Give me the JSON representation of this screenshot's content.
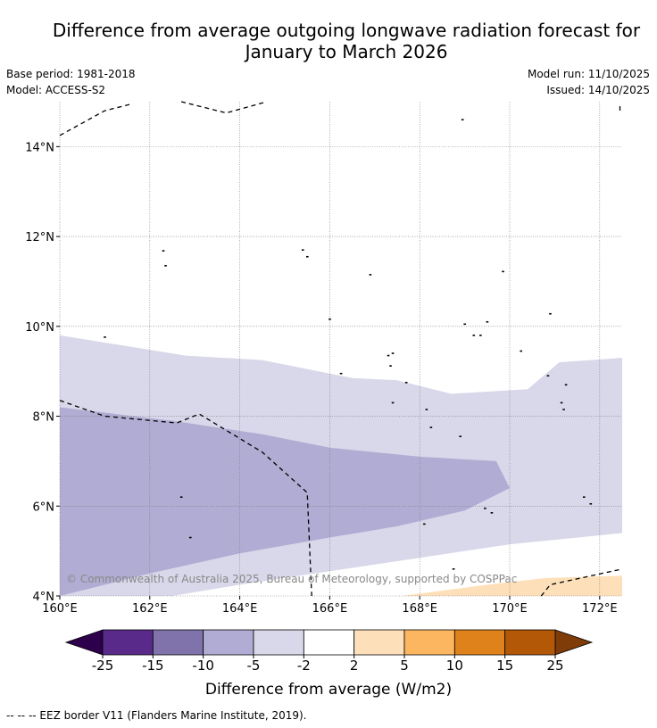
{
  "title_line1": "Difference from average outgoing longwave radiation forecast for",
  "title_line2": "January to March 2026",
  "meta": {
    "base_period": "Base period: 1981-2018",
    "model": "Model: ACCESS-S2",
    "model_run": "Model run: 11/10/2025",
    "issued": "Issued: 14/10/2025"
  },
  "copyright": "© Commonwealth of Australia 2025, Bureau of Meteorology, supported by COSPPac",
  "footnote": "--  --  -- EEZ border V11 (Flanders Marine Institute, 2019).",
  "chart_data": {
    "type": "map",
    "lon_range": [
      160,
      172.5
    ],
    "lat_range": [
      4,
      15
    ],
    "x_ticks": [
      {
        "value": 160,
        "label": "160°E"
      },
      {
        "value": 162,
        "label": "162°E"
      },
      {
        "value": 164,
        "label": "164°E"
      },
      {
        "value": 166,
        "label": "166°E"
      },
      {
        "value": 168,
        "label": "168°E"
      },
      {
        "value": 170,
        "label": "170°E"
      },
      {
        "value": 172,
        "label": "172°E"
      }
    ],
    "y_ticks": [
      {
        "value": 4,
        "label": "4°N"
      },
      {
        "value": 6,
        "label": "6°N"
      },
      {
        "value": 8,
        "label": "8°N"
      },
      {
        "value": 10,
        "label": "10°N"
      },
      {
        "value": 12,
        "label": "12°N"
      },
      {
        "value": 14,
        "label": "14°N"
      }
    ],
    "regions": [
      {
        "name": "-5 to -2",
        "color": "#d8d8ea",
        "points": [
          [
            160,
            9.8
          ],
          [
            162.8,
            9.35
          ],
          [
            164.5,
            9.25
          ],
          [
            166.5,
            8.85
          ],
          [
            167.5,
            8.8
          ],
          [
            168.7,
            8.5
          ],
          [
            170.4,
            8.6
          ],
          [
            171.1,
            9.2
          ],
          [
            172.5,
            9.3
          ],
          [
            172.5,
            5.4
          ],
          [
            170,
            5.15
          ],
          [
            168,
            4.85
          ],
          [
            166,
            4.55
          ],
          [
            164,
            4.25
          ],
          [
            162.5,
            4
          ],
          [
            160,
            4
          ]
        ]
      },
      {
        "name": "-10 to -5",
        "color": "#b1acd3",
        "points": [
          [
            160,
            8.2
          ],
          [
            162.5,
            7.9
          ],
          [
            164.5,
            7.6
          ],
          [
            166,
            7.3
          ],
          [
            168,
            7.1
          ],
          [
            169.7,
            7.0
          ],
          [
            170,
            6.4
          ],
          [
            169,
            5.9
          ],
          [
            167.5,
            5.55
          ],
          [
            166,
            5.3
          ],
          [
            164,
            4.95
          ],
          [
            162,
            4.5
          ],
          [
            160,
            4
          ]
        ]
      },
      {
        "name": "2 to 5",
        "color": "#fde0b9",
        "points": [
          [
            167.6,
            4
          ],
          [
            169.5,
            4.25
          ],
          [
            170.8,
            4.4
          ],
          [
            172.5,
            4.45
          ],
          [
            172.5,
            4
          ]
        ]
      }
    ],
    "eez_borders": [
      [
        [
          160,
          14.25
        ],
        [
          161,
          14.8
        ],
        [
          161.6,
          14.95
        ]
      ],
      [
        [
          162.7,
          15
        ],
        [
          163.7,
          14.75
        ],
        [
          164.6,
          15
        ]
      ],
      [
        [
          172.45,
          14.9
        ],
        [
          172.45,
          14.8
        ]
      ],
      [
        [
          160,
          8.35
        ],
        [
          161,
          8.0
        ],
        [
          162.6,
          7.85
        ],
        [
          163.1,
          8.05
        ],
        [
          164.5,
          7.2
        ],
        [
          165.5,
          6.3
        ],
        [
          165.6,
          4.0
        ]
      ],
      [
        [
          170.7,
          4
        ],
        [
          170.9,
          4.25
        ],
        [
          172.5,
          4.6
        ]
      ]
    ],
    "islands": [
      [
        168.95,
        14.6
      ],
      [
        162.3,
        11.68
      ],
      [
        162.35,
        11.35
      ],
      [
        165.4,
        11.7
      ],
      [
        165.5,
        11.55
      ],
      [
        166.9,
        11.15
      ],
      [
        169.85,
        11.22
      ],
      [
        166,
        10.16
      ],
      [
        169,
        10.05
      ],
      [
        169.5,
        10.1
      ],
      [
        169.2,
        9.8
      ],
      [
        169.35,
        9.8
      ],
      [
        170.25,
        9.45
      ],
      [
        170.9,
        10.28
      ],
      [
        161,
        9.76
      ],
      [
        166.25,
        8.95
      ],
      [
        167.4,
        9.4
      ],
      [
        167.3,
        9.35
      ],
      [
        167.35,
        9.12
      ],
      [
        167.7,
        8.75
      ],
      [
        170.85,
        8.9
      ],
      [
        171.25,
        8.7
      ],
      [
        171.15,
        8.3
      ],
      [
        171.2,
        8.15
      ],
      [
        167.4,
        8.3
      ],
      [
        168.15,
        8.15
      ],
      [
        168.25,
        7.75
      ],
      [
        168.9,
        7.55
      ],
      [
        162.7,
        6.2
      ],
      [
        169.45,
        5.95
      ],
      [
        169.6,
        5.85
      ],
      [
        171.65,
        6.2
      ],
      [
        171.8,
        6.05
      ],
      [
        168.1,
        5.6
      ],
      [
        162.9,
        5.3
      ],
      [
        168.75,
        4.6
      ]
    ],
    "colorbar": {
      "label": "Difference from average (W/m2)",
      "ticks": [
        "-25",
        "-15",
        "-10",
        "-5",
        "-2",
        "2",
        "5",
        "10",
        "15",
        "25"
      ],
      "under_color": "#2d004b",
      "over_color": "#7f3b08",
      "colors": [
        "#5a2a8b",
        "#8073ac",
        "#b1acd3",
        "#d8d8ea",
        "#ffffff",
        "#fde0b9",
        "#fcb660",
        "#e0821b",
        "#b35806"
      ]
    }
  }
}
